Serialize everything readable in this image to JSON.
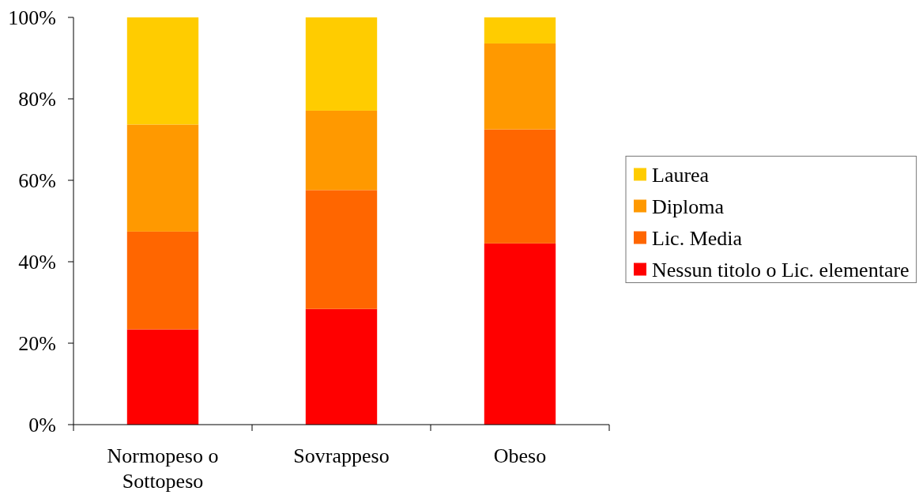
{
  "chart_data": {
    "type": "bar",
    "stacked": true,
    "categories": [
      "Normopeso o Sottopeso",
      "Sovrappeso",
      "Obeso"
    ],
    "series": [
      {
        "name": "Nessun titolo o Lic. elementare",
        "color": "#ff0000",
        "values": [
          23.4,
          28.4,
          44.5
        ]
      },
      {
        "name": "Lic. Media",
        "color": "#ff6600",
        "values": [
          24.0,
          29.2,
          28.0
        ]
      },
      {
        "name": "Diploma",
        "color": "#ff9900",
        "values": [
          26.3,
          19.5,
          21.1
        ]
      },
      {
        "name": "Laurea",
        "color": "#ffcc00",
        "values": [
          26.3,
          22.9,
          6.4
        ]
      }
    ],
    "ylim": [
      0,
      100
    ],
    "yticks": [
      {
        "value": 0,
        "label": "0%"
      },
      {
        "value": 20,
        "label": "20%"
      },
      {
        "value": 40,
        "label": "40%"
      },
      {
        "value": 60,
        "label": "60%"
      },
      {
        "value": 80,
        "label": "80%"
      },
      {
        "value": 100,
        "label": "100%"
      }
    ],
    "legend": "right"
  }
}
